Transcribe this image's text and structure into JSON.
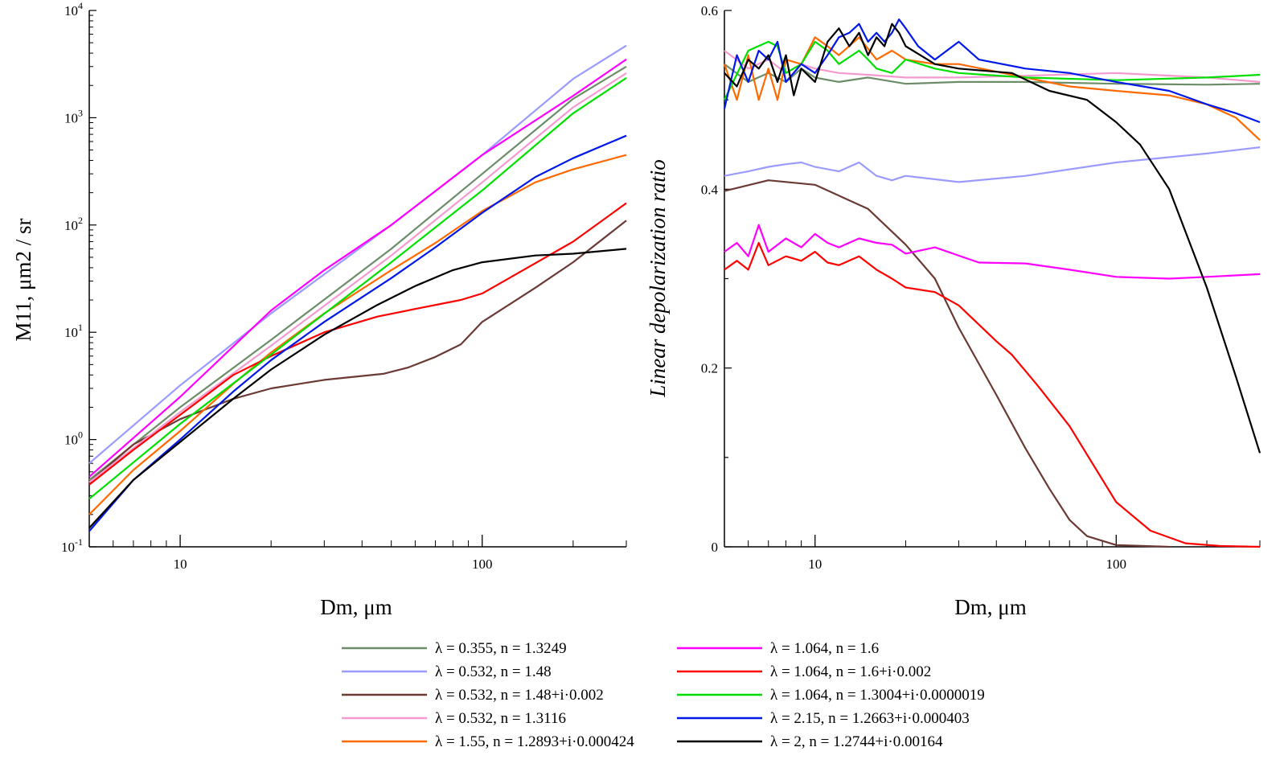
{
  "chart_data": [
    {
      "type": "line",
      "title": "",
      "xlabel": "Dm, μm",
      "ylabel": "M11, μm2 / sr",
      "xscale": "log",
      "yscale": "log",
      "xlim": [
        5,
        300
      ],
      "ylim": [
        0.1,
        10000
      ],
      "x_tick_labels": [
        {
          "value": 10,
          "label": "10"
        },
        {
          "value": 100,
          "label": "100"
        }
      ],
      "y_tick_labels": [
        {
          "value": 0.1,
          "base": "10",
          "exp": "-1"
        },
        {
          "value": 1,
          "base": "10",
          "exp": "0"
        },
        {
          "value": 10,
          "base": "10",
          "exp": "1"
        },
        {
          "value": 100,
          "base": "10",
          "exp": "2"
        },
        {
          "value": 1000,
          "base": "10",
          "exp": "3"
        },
        {
          "value": 10000,
          "base": "10",
          "exp": "4"
        }
      ],
      "series": [
        {
          "name": "λ = 0.355, n = 1.3249",
          "color": "#6b8e68",
          "x": [
            5,
            10,
            20,
            50,
            100,
            200,
            300
          ],
          "y": [
            0.42,
            2.0,
            8.5,
            60,
            300,
            1500,
            3000
          ]
        },
        {
          "name": "λ = 0.532, n = 1.48",
          "color": "#9b9bff",
          "x": [
            5,
            10,
            20,
            50,
            100,
            200,
            300
          ],
          "y": [
            0.6,
            3.2,
            15,
            100,
            450,
            2300,
            4700
          ]
        },
        {
          "name": "λ = 0.532, n = 1.48+i·0.002",
          "color": "#6b3a34",
          "x": [
            5,
            7,
            10,
            15,
            20,
            30,
            47,
            57,
            70,
            85,
            100,
            150,
            200,
            300
          ],
          "y": [
            0.4,
            0.9,
            1.55,
            2.4,
            3.0,
            3.6,
            4.1,
            4.7,
            5.9,
            7.7,
            12.5,
            26,
            45,
            110
          ]
        },
        {
          "name": "λ = 0.532, n = 1.3116",
          "color": "#f59ad0",
          "x": [
            5,
            10,
            20,
            50,
            100,
            200,
            300
          ],
          "y": [
            0.4,
            1.8,
            7.5,
            52,
            250,
            1250,
            2600
          ]
        },
        {
          "name": "λ = 1.55, n = 1.2893+i·0.000424",
          "color": "#ff6a00",
          "x": [
            5,
            7,
            10,
            15,
            20,
            30,
            50,
            70,
            100,
            150,
            200,
            300
          ],
          "y": [
            0.2,
            0.52,
            1.2,
            3.3,
            6.5,
            15,
            38,
            68,
            135,
            250,
            330,
            450
          ]
        },
        {
          "name": "λ = 1.064, n = 1.6",
          "color": "#ff00ff",
          "x": [
            5,
            10,
            20,
            30,
            50,
            100,
            200,
            300
          ],
          "y": [
            0.45,
            2.5,
            16,
            38,
            100,
            450,
            1600,
            3500
          ]
        },
        {
          "name": "λ = 1.064, n = 1.6+i·0.002",
          "color": "#ff0000",
          "x": [
            5,
            7,
            10,
            15,
            20,
            30,
            45,
            60,
            85,
            100,
            130,
            200,
            300
          ],
          "y": [
            0.38,
            0.8,
            1.7,
            4.0,
            6.0,
            10.0,
            14.0,
            16.5,
            20,
            23,
            35,
            70,
            160
          ]
        },
        {
          "name": "λ = 1.064, n = 1.3004+i·0.0000019",
          "color": "#00e000",
          "x": [
            5,
            10,
            20,
            50,
            100,
            200,
            300
          ],
          "y": [
            0.28,
            1.4,
            6.2,
            45,
            210,
            1100,
            2350
          ]
        },
        {
          "name": "λ = 2.15, n = 1.2663+i·0.000403",
          "color": "#0018e8",
          "x": [
            5,
            7,
            10,
            15,
            20,
            30,
            50,
            70,
            100,
            150,
            200,
            300
          ],
          "y": [
            0.14,
            0.42,
            1.0,
            2.8,
            5.5,
            12.5,
            32,
            62,
            130,
            280,
            420,
            680
          ]
        },
        {
          "name": "λ = 2, n = 1.2744+i·0.00164",
          "color": "#000000",
          "x": [
            5,
            7,
            10,
            15,
            20,
            30,
            45,
            60,
            80,
            100,
            150,
            200,
            300
          ],
          "y": [
            0.15,
            0.42,
            0.95,
            2.4,
            4.5,
            9.5,
            18,
            27,
            38,
            45,
            52,
            54,
            60
          ]
        }
      ]
    },
    {
      "type": "line",
      "title": "",
      "xlabel": "Dm, μm",
      "ylabel": "Linear depolarization ratio",
      "xscale": "log",
      "yscale": "linear",
      "xlim": [
        5,
        300
      ],
      "ylim": [
        0,
        0.6
      ],
      "x_tick_labels": [
        {
          "value": 10,
          "label": "10"
        },
        {
          "value": 100,
          "label": "100"
        }
      ],
      "y_tick_labels": [
        {
          "value": 0,
          "label": "0"
        },
        {
          "value": 0.2,
          "label": "0.2"
        },
        {
          "value": 0.4,
          "label": "0.4"
        },
        {
          "value": 0.6,
          "label": "0.6"
        }
      ],
      "series": [
        {
          "name": "λ = 0.355, n = 1.3249",
          "color": "#6b8e68",
          "x": [
            5,
            6,
            7,
            8,
            9,
            10,
            12,
            15,
            20,
            30,
            50,
            100,
            200,
            300
          ],
          "y": [
            0.54,
            0.52,
            0.53,
            0.52,
            0.535,
            0.525,
            0.52,
            0.525,
            0.518,
            0.52,
            0.52,
            0.518,
            0.517,
            0.518
          ]
        },
        {
          "name": "λ = 0.532, n = 1.48",
          "color": "#9b9bff",
          "x": [
            5,
            6,
            7,
            8,
            9,
            10,
            12,
            14,
            16,
            18,
            20,
            30,
            50,
            100,
            200,
            300
          ],
          "y": [
            0.415,
            0.42,
            0.425,
            0.428,
            0.43,
            0.425,
            0.42,
            0.43,
            0.415,
            0.41,
            0.415,
            0.408,
            0.415,
            0.43,
            0.44,
            0.447
          ]
        },
        {
          "name": "λ = 0.532, n = 1.48+i·0.002",
          "color": "#6b3a34",
          "x": [
            5,
            7,
            10,
            15,
            20,
            25,
            30,
            40,
            50,
            60,
            70,
            80,
            100,
            150
          ],
          "y": [
            0.398,
            0.41,
            0.405,
            0.378,
            0.338,
            0.3,
            0.245,
            0.17,
            0.11,
            0.065,
            0.03,
            0.012,
            0.002,
            0.0
          ]
        },
        {
          "name": "λ = 0.532, n = 1.3116",
          "color": "#f59ad0",
          "x": [
            5,
            6,
            7,
            8,
            9,
            10,
            12,
            15,
            20,
            30,
            50,
            100,
            200,
            300
          ],
          "y": [
            0.555,
            0.535,
            0.545,
            0.53,
            0.54,
            0.535,
            0.53,
            0.528,
            0.525,
            0.525,
            0.527,
            0.53,
            0.525,
            0.52
          ]
        },
        {
          "name": "λ = 1.55, n = 1.2893+i·0.000424",
          "color": "#ff6a00",
          "x": [
            5,
            5.5,
            6,
            6.5,
            7,
            7.5,
            8,
            9,
            10,
            11,
            12,
            14,
            16,
            18,
            20,
            25,
            30,
            50,
            70,
            100,
            150,
            200,
            250,
            300
          ],
          "y": [
            0.54,
            0.5,
            0.55,
            0.5,
            0.535,
            0.5,
            0.545,
            0.54,
            0.57,
            0.56,
            0.55,
            0.57,
            0.545,
            0.555,
            0.545,
            0.54,
            0.54,
            0.525,
            0.515,
            0.51,
            0.505,
            0.495,
            0.48,
            0.455
          ]
        },
        {
          "name": "λ = 1.064, n = 1.6",
          "color": "#ff00ff",
          "x": [
            5,
            5.5,
            6,
            6.5,
            7,
            8,
            9,
            10,
            11,
            12,
            14,
            16,
            18,
            20,
            25,
            35,
            50,
            70,
            100,
            150,
            200,
            300
          ],
          "y": [
            0.33,
            0.34,
            0.325,
            0.36,
            0.33,
            0.345,
            0.335,
            0.35,
            0.34,
            0.335,
            0.345,
            0.34,
            0.338,
            0.328,
            0.335,
            0.318,
            0.317,
            0.31,
            0.302,
            0.3,
            0.302,
            0.305
          ]
        },
        {
          "name": "λ = 1.064, n = 1.6+i·0.002",
          "color": "#ff0000",
          "x": [
            5,
            5.5,
            6,
            6.5,
            7,
            8,
            9,
            10,
            11,
            12,
            14,
            16,
            18,
            20,
            25,
            30,
            40,
            45,
            55,
            70,
            90,
            100,
            130,
            170,
            220,
            300
          ],
          "y": [
            0.31,
            0.32,
            0.31,
            0.34,
            0.315,
            0.325,
            0.32,
            0.33,
            0.318,
            0.315,
            0.325,
            0.31,
            0.3,
            0.29,
            0.285,
            0.27,
            0.23,
            0.215,
            0.18,
            0.135,
            0.075,
            0.05,
            0.018,
            0.004,
            0.001,
            0.0
          ]
        },
        {
          "name": "λ = 1.064, n = 1.3004+i·0.0000019",
          "color": "#00e000",
          "x": [
            5,
            6,
            7,
            7.5,
            8,
            9,
            10,
            11,
            12,
            14,
            15,
            16,
            18,
            20,
            25,
            30,
            50,
            100,
            200,
            300
          ],
          "y": [
            0.5,
            0.555,
            0.565,
            0.56,
            0.53,
            0.54,
            0.565,
            0.555,
            0.54,
            0.555,
            0.545,
            0.535,
            0.53,
            0.545,
            0.535,
            0.53,
            0.525,
            0.522,
            0.525,
            0.528
          ]
        },
        {
          "name": "λ = 2.15, n = 1.2663+i·0.000403",
          "color": "#0018e8",
          "x": [
            5,
            5.5,
            6,
            6.5,
            7,
            7.5,
            8,
            9,
            10,
            11,
            12,
            13,
            14,
            15,
            16,
            17,
            18,
            19,
            20,
            22,
            25,
            30,
            35,
            50,
            70,
            100,
            150,
            200,
            250,
            300
          ],
          "y": [
            0.49,
            0.55,
            0.52,
            0.555,
            0.545,
            0.565,
            0.52,
            0.54,
            0.53,
            0.55,
            0.57,
            0.575,
            0.585,
            0.565,
            0.575,
            0.565,
            0.575,
            0.59,
            0.58,
            0.56,
            0.545,
            0.565,
            0.545,
            0.535,
            0.53,
            0.52,
            0.51,
            0.495,
            0.485,
            0.475
          ]
        },
        {
          "name": "λ = 2, n = 1.2744+i·0.00164",
          "color": "#000000",
          "x": [
            5,
            5.5,
            6,
            6.5,
            7,
            7.5,
            8,
            8.5,
            9,
            10,
            11,
            12,
            13,
            14,
            15,
            16,
            17,
            18,
            19,
            20,
            25,
            30,
            45,
            60,
            80,
            100,
            120,
            150,
            200,
            250,
            300
          ],
          "y": [
            0.53,
            0.515,
            0.545,
            0.535,
            0.55,
            0.52,
            0.55,
            0.505,
            0.535,
            0.52,
            0.565,
            0.58,
            0.56,
            0.575,
            0.55,
            0.57,
            0.56,
            0.585,
            0.575,
            0.56,
            0.54,
            0.535,
            0.53,
            0.51,
            0.5,
            0.475,
            0.45,
            0.4,
            0.29,
            0.19,
            0.105
          ]
        }
      ]
    }
  ]
}
